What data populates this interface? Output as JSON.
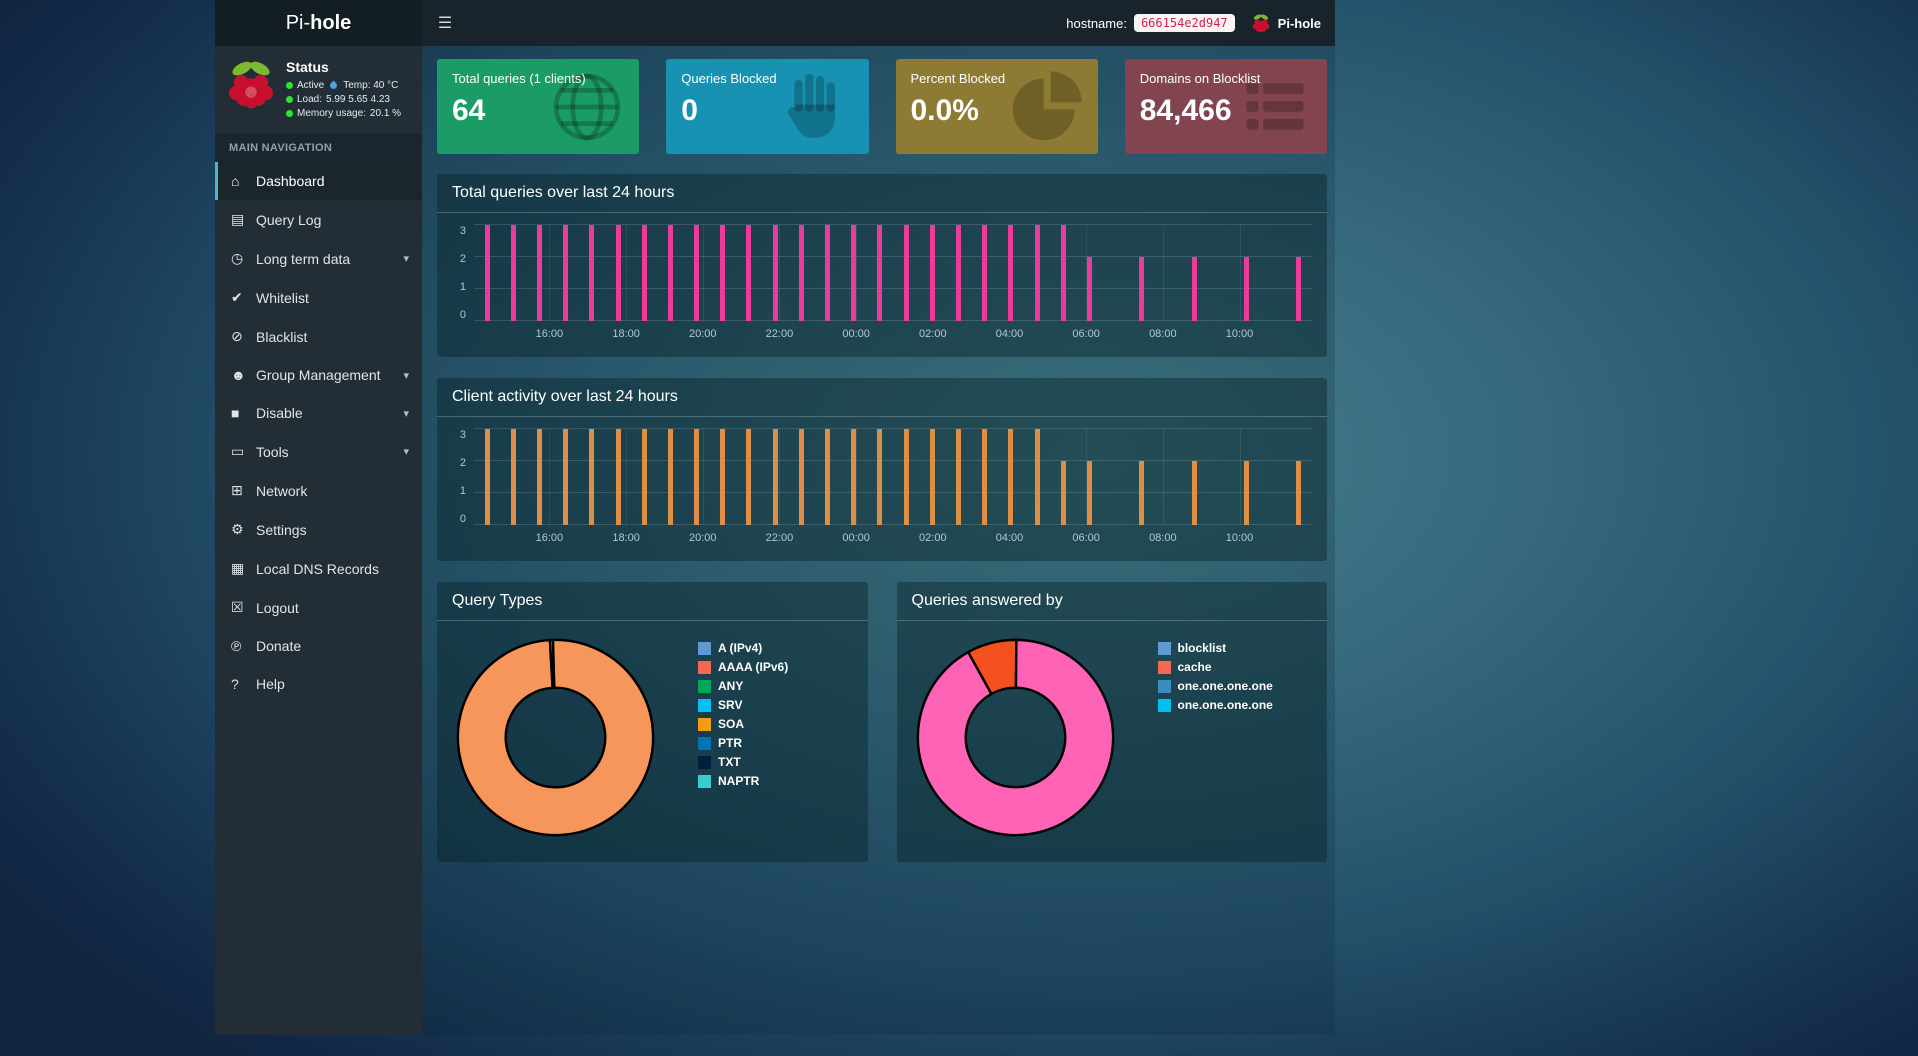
{
  "topbar": {
    "brand_prefix": "Pi-",
    "brand_bold": "hole",
    "hostname_label": "hostname:",
    "hostname_value": "666154e2d947",
    "user_name": "Pi-hole"
  },
  "icons": {
    "home": "⌂",
    "file-text": "▤",
    "clock": "◷",
    "check-circle": "✔",
    "ban": "⊘",
    "users": "☻",
    "stop": "■",
    "folder": "▭",
    "sitemap": "⊞",
    "gears": "⚙",
    "address-book": "▦",
    "user-times": "☒",
    "paypal": "℗",
    "question-circle": "?",
    "hamburger": "☰",
    "chevron-down": "▾"
  },
  "sidebar": {
    "status": {
      "title": "Status",
      "active": "Active",
      "temp": "Temp: 40 °C",
      "load_label": "Load:",
      "load_value": "5.99 5.65 4.23",
      "memory_label": "Memory usage:",
      "memory_value": "20.1 %"
    },
    "nav_header": "MAIN NAVIGATION",
    "items": [
      {
        "id": "dashboard",
        "label": "Dashboard",
        "icon": "home",
        "active": true
      },
      {
        "id": "query-log",
        "label": "Query Log",
        "icon": "file-text"
      },
      {
        "id": "long-term-data",
        "label": "Long term data",
        "icon": "clock",
        "expandable": true
      },
      {
        "id": "whitelist",
        "label": "Whitelist",
        "icon": "check-circle"
      },
      {
        "id": "blacklist",
        "label": "Blacklist",
        "icon": "ban"
      },
      {
        "id": "group-management",
        "label": "Group Management",
        "icon": "users",
        "expandable": true
      },
      {
        "id": "disable",
        "label": "Disable",
        "icon": "stop",
        "expandable": true
      },
      {
        "id": "tools",
        "label": "Tools",
        "icon": "folder",
        "expandable": true
      },
      {
        "id": "network",
        "label": "Network",
        "icon": "sitemap"
      },
      {
        "id": "settings",
        "label": "Settings",
        "icon": "gears"
      },
      {
        "id": "local-dns-records",
        "label": "Local DNS Records",
        "icon": "address-book"
      },
      {
        "id": "logout",
        "label": "Logout",
        "icon": "user-times"
      },
      {
        "id": "donate",
        "label": "Donate",
        "icon": "paypal"
      },
      {
        "id": "help",
        "label": "Help",
        "icon": "question-circle"
      }
    ]
  },
  "cards": [
    {
      "title": "Total queries (1 clients)",
      "value": "64",
      "color": "#1b9c67",
      "icon": "globe"
    },
    {
      "title": "Queries Blocked",
      "value": "0",
      "color": "#1792b2",
      "icon": "hand-paper"
    },
    {
      "title": "Percent Blocked",
      "value": "0.0%",
      "color": "#8d7b33",
      "icon": "pie-chart"
    },
    {
      "title": "Domains on Blocklist",
      "value": "84,466",
      "color": "#82444f",
      "icon": "th-list"
    }
  ],
  "chart_data": [
    {
      "type": "bar",
      "title": "Total queries over last 24 hours",
      "ylabel": "",
      "xlabel": "",
      "ylim": [
        0,
        3
      ],
      "yticks": [
        0,
        1,
        2,
        3
      ],
      "grid": true,
      "legend_position": "none",
      "bar_color": "#ee3a9b",
      "xticks": [
        "16:00",
        "18:00",
        "20:00",
        "22:00",
        "00:00",
        "02:00",
        "04:00",
        "06:00",
        "08:00",
        "10:00"
      ],
      "tick_start_pct": 9.0,
      "tick_step_pct": 9.15,
      "values": [
        3,
        3,
        3,
        3,
        3,
        3,
        3,
        3,
        3,
        3,
        3,
        3,
        3,
        3,
        3,
        3,
        3,
        3,
        3,
        3,
        3,
        3,
        3,
        2,
        0,
        2,
        0,
        2,
        0,
        2,
        0,
        2
      ]
    },
    {
      "type": "bar",
      "title": "Client activity over last 24 hours",
      "ylabel": "",
      "xlabel": "",
      "ylim": [
        0,
        3
      ],
      "yticks": [
        0,
        1,
        2,
        3
      ],
      "grid": true,
      "legend_position": "none",
      "bar_color": "#de8f45",
      "xticks": [
        "16:00",
        "18:00",
        "20:00",
        "22:00",
        "00:00",
        "02:00",
        "04:00",
        "06:00",
        "08:00",
        "10:00"
      ],
      "tick_start_pct": 9.0,
      "tick_step_pct": 9.15,
      "values": [
        3,
        3,
        3,
        3,
        3,
        3,
        3,
        3,
        3,
        3,
        3,
        3,
        3,
        3,
        3,
        3,
        3,
        3,
        3,
        3,
        3,
        3,
        2,
        2,
        0,
        2,
        0,
        2,
        0,
        2,
        0,
        2
      ]
    },
    {
      "type": "pie",
      "title": "Query Types",
      "legend_position": "right",
      "start_angle": -1.5,
      "slices": [
        {
          "label": "SOA",
          "value": 99.5,
          "color": "#f7965a"
        },
        {
          "label": "A (IPv4)",
          "value": 0.5,
          "color": "#5d9cd3"
        }
      ],
      "legend": [
        {
          "label": "A (IPv4)",
          "color": "#5d9cd3"
        },
        {
          "label": "AAAA (IPv6)",
          "color": "#f56954"
        },
        {
          "label": "ANY",
          "color": "#00a65a"
        },
        {
          "label": "SRV",
          "color": "#00c0ef"
        },
        {
          "label": "SOA",
          "color": "#f39c12"
        },
        {
          "label": "PTR",
          "color": "#0073b7"
        },
        {
          "label": "TXT",
          "color": "#001f3f"
        },
        {
          "label": "NAPTR",
          "color": "#39cccc"
        }
      ]
    },
    {
      "type": "pie",
      "title": "Queries answered by",
      "legend_position": "right",
      "start_angle": -29,
      "slices": [
        {
          "label": "cache",
          "value": 8.2,
          "color": "#f4511e"
        },
        {
          "label": "one.one.one.one",
          "value": 91.8,
          "color": "#ff63b5"
        }
      ],
      "legend": [
        {
          "label": "blocklist",
          "color": "#5d9cd3"
        },
        {
          "label": "cache",
          "color": "#f56954"
        },
        {
          "label": "one.one.one.one",
          "color": "#3c8dbc"
        },
        {
          "label": "one.one.one.one",
          "color": "#00c0ef"
        }
      ]
    }
  ]
}
